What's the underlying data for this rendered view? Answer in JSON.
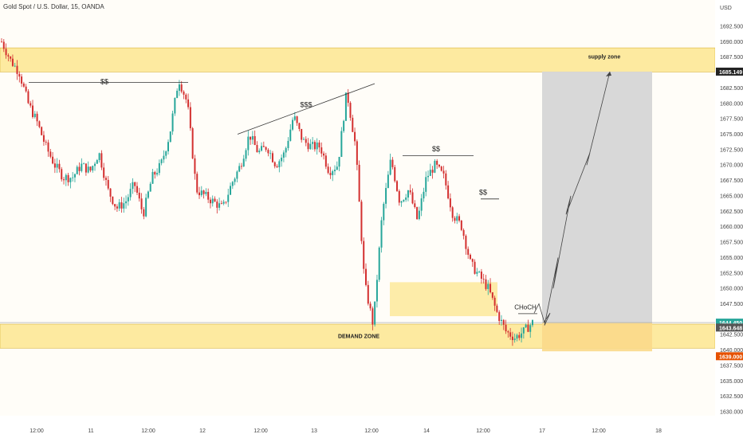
{
  "header": {
    "title": "Gold Spot / U.S. Dollar, 15, OANDA"
  },
  "colors": {
    "up": "#26a69a",
    "down": "#d32f2f",
    "zone": "#fdeaa0",
    "projection": "#d6d6d6",
    "background": "#fffdf8"
  },
  "price_axis": {
    "currency": "USD",
    "ticks": [
      "1692.500",
      "1690.000",
      "1687.500",
      "1682.500",
      "1680.000",
      "1677.500",
      "1675.000",
      "1672.500",
      "1670.000",
      "1667.500",
      "1665.000",
      "1662.500",
      "1660.000",
      "1657.500",
      "1655.000",
      "1652.500",
      "1650.000",
      "1647.500",
      "1642.500",
      "1640.000",
      "1637.500",
      "1635.000",
      "1632.500",
      "1630.000"
    ],
    "markers": [
      {
        "value": "1685.149",
        "color": "#222222"
      },
      {
        "value": "1644.450",
        "color": "#26a69a"
      },
      {
        "value": "1643.648",
        "color": "#555555"
      },
      {
        "value": "1639.000",
        "color": "#e65100"
      }
    ]
  },
  "time_axis": {
    "ticks": [
      "12:00",
      "11",
      "12:00",
      "12",
      "12:00",
      "13",
      "12:00",
      "14",
      "12:00",
      "17",
      "12:00",
      "18"
    ]
  },
  "annotations": {
    "supply": "supply zone",
    "demand": "DEMAND ZONE",
    "choch": "CHoCH",
    "liq1": "$$",
    "liq2": "$$$",
    "liq3": "$$",
    "liq4": "$$"
  },
  "chart_data": {
    "type": "candlestick",
    "title": "Gold Spot / U.S. Dollar, 15, OANDA",
    "y_unit": "USD",
    "ylim": [
      1627.5,
      1695.0
    ],
    "x_ticks": [
      "12:00",
      "11",
      "12:00",
      "12",
      "12:00",
      "13",
      "12:00",
      "14",
      "12:00",
      "17",
      "12:00",
      "18"
    ],
    "zones": [
      {
        "label": "supply zone",
        "from": 1685.1,
        "to": 1689.0
      },
      {
        "label": "DEMAND ZONE",
        "from": 1640.3,
        "to": 1644.2
      }
    ],
    "close_path": [
      1690,
      1687,
      1685,
      1680,
      1677,
      1673,
      1670,
      1668,
      1668,
      1670,
      1669,
      1672,
      1666,
      1663,
      1664,
      1667,
      1662,
      1668,
      1670,
      1675,
      1684,
      1680,
      1666,
      1665,
      1664,
      1663,
      1667,
      1670,
      1675,
      1672,
      1673,
      1670,
      1672,
      1678,
      1674,
      1673,
      1673,
      1669,
      1670,
      1682,
      1673,
      1651,
      1644,
      1662,
      1671,
      1664,
      1666,
      1661,
      1668,
      1670,
      1668,
      1662,
      1660,
      1654,
      1652,
      1650,
      1646,
      1643,
      1642,
      1643,
      1644.45
    ],
    "projection_path": [
      1644.45,
      1646,
      1644,
      1655,
      1650,
      1665,
      1662,
      1672,
      1670,
      1685.149
    ],
    "current_price": 1644.45
  }
}
